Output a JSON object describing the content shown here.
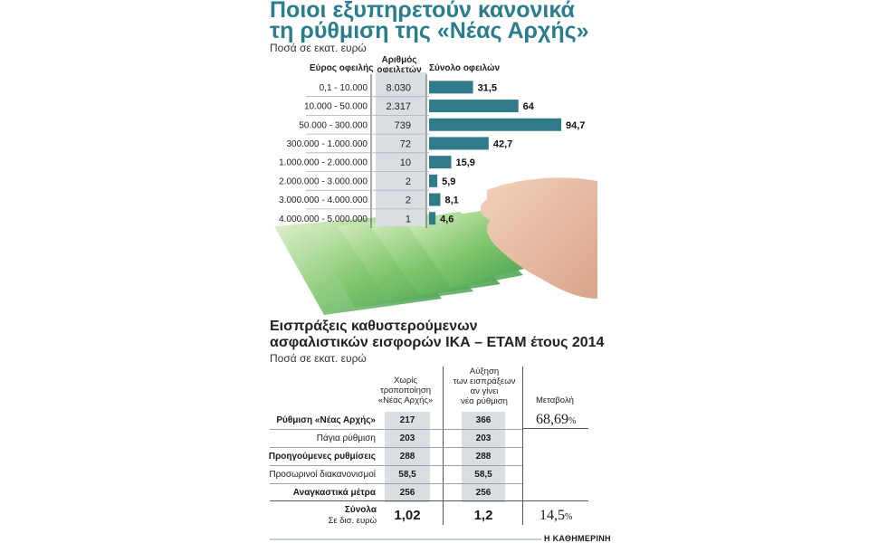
{
  "chart1": {
    "title_line1": "Ποιοι εξυπηρετούν κανονικά",
    "title_line2": "τη ρύθμιση της «Νέας Αρχής»",
    "subtitle": "Ποσά σε εκατ. ευρώ",
    "col_range": "Εύρος οφειλής",
    "col_count_line1": "Αριθμός",
    "col_count_line2": "οφειλετών",
    "col_total": "Σύνολο οφειλών"
  },
  "chart_data": {
    "type": "bar",
    "orientation": "horizontal",
    "title": "Ποιοι εξυπηρετούν κανονικά τη ρύθμιση της «Νέας Αρχής»",
    "unit": "Ποσά σε εκατ. ευρώ",
    "categories": [
      "0,1 - 10.000",
      "10.000 - 50.000",
      "50.000 - 300.000",
      "300.000 - 1.000.000",
      "1.000.000 - 2.000.000",
      "2.000.000 - 3.000.000",
      "3.000.000 - 4.000.000",
      "4.000.000 - 5.000.000"
    ],
    "debtors": [
      "8.030",
      "2.317",
      "739",
      "72",
      "10",
      "2",
      "2",
      "1"
    ],
    "values": [
      31.5,
      64,
      94.7,
      42.7,
      15.9,
      5.9,
      8.1,
      4.6
    ],
    "value_labels": [
      "31,5",
      "64",
      "94,7",
      "42,7",
      "15,9",
      "5,9",
      "8,1",
      "4,6"
    ],
    "xlim": [
      0,
      94.7
    ]
  },
  "table": {
    "title_line1": "Εισπράξεις καθυστερούμενων",
    "title_line2": "ασφαλιστικών εισφορών ΙΚΑ – ΕΤΑΜ έτους 2014",
    "subtitle": "Ποσά σε εκατ. ευρώ",
    "head_col1": [
      "Χωρίς",
      "τροποποίηση",
      "«Νέας Αρχής»"
    ],
    "head_col2": [
      "Αύξηση",
      "των εισπράξεων",
      "αν γίνει",
      "νέα ρύθμιση"
    ],
    "head_col3": "Μεταβολή",
    "rows": [
      {
        "label": "Ρύθμιση «Νέας Αρχής»",
        "v1": "217",
        "v2": "366"
      },
      {
        "label": "Πάγια ρύθμιση",
        "v1": "203",
        "v2": "203"
      },
      {
        "label": "Προηγούμενες ρυθμίσεις",
        "v1": "288",
        "v2": "288"
      },
      {
        "label": "Προσωρινοί διακανονισμοί",
        "v1": "58,5",
        "v2": "58,5"
      },
      {
        "label": "Αναγκαστικά μέτρα",
        "v1": "256",
        "v2": "256"
      }
    ],
    "change_top": "68,69",
    "pct_sign": "%",
    "totals_label": "Σύνολα",
    "totals_sublabel": "Σε δισ. ευρώ",
    "total_v1": "1,02",
    "total_v2": "1,2",
    "change_total": "14,5"
  },
  "footer": "Η ΚΑΘΗΜΕΡΙΝΗ",
  "colors": {
    "accent": "#2a7d8c",
    "bar": "#2f7b8a",
    "shade": "#d9dee3"
  }
}
